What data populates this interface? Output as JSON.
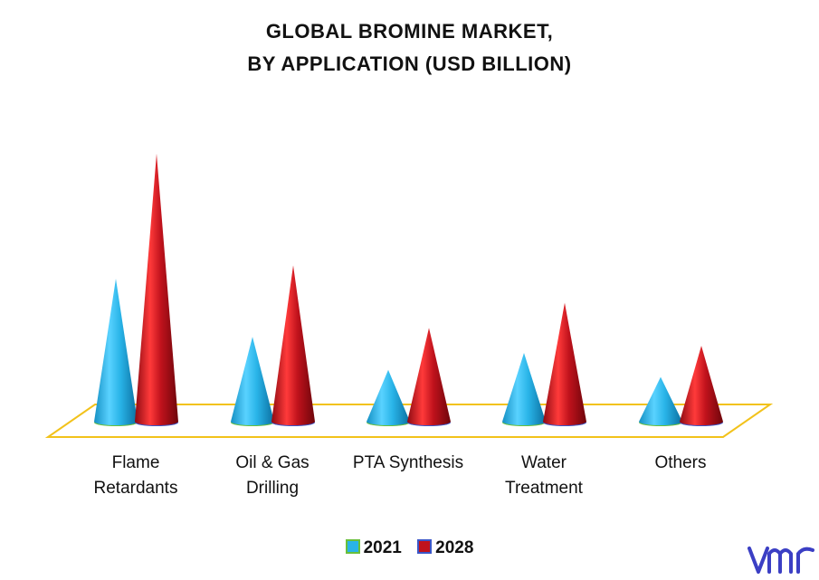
{
  "chart_data": {
    "type": "bar",
    "title_line1": "GLOBAL BROMINE MARKET,",
    "title_line2": "BY APPLICATION (USD BILLION)",
    "categories": [
      [
        "Flame",
        "Retardants"
      ],
      [
        "Oil & Gas",
        "Drilling"
      ],
      [
        "PTA Synthesis",
        ""
      ],
      [
        "Water",
        "Treatment"
      ],
      [
        "Others",
        ""
      ]
    ],
    "series": [
      {
        "name": "2021",
        "values": [
          1.6,
          0.95,
          0.58,
          0.77,
          0.5
        ],
        "color": "#29b4e8"
      },
      {
        "name": "2028",
        "values": [
          3.0,
          1.75,
          1.05,
          1.33,
          0.85
        ],
        "color": "#c0121c"
      }
    ],
    "ylim": [
      0,
      3.2
    ],
    "grid": false,
    "legend": "bottom-center",
    "floor_color": "#f2c21b"
  }
}
